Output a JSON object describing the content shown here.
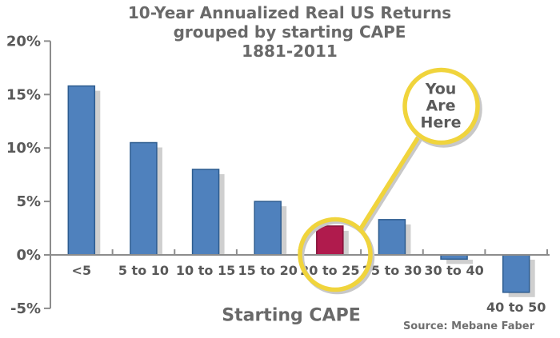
{
  "title": {
    "lines": [
      "10-Year Annualized Real US Returns",
      "grouped by starting CAPE",
      "1881-2011"
    ]
  },
  "annotation": {
    "lines": [
      "You",
      "Are",
      "Here"
    ],
    "text": "You Are Here",
    "target_category": "20 to 25"
  },
  "chart_data": {
    "type": "bar",
    "title": "10-Year Annualized Real US Returns grouped by starting CAPE 1881-2011",
    "categories": [
      "<5",
      "5 to 10",
      "10 to 15",
      "15 to 20",
      "20 to 25",
      "25 to 30",
      "30 to 40",
      "40 to 50"
    ],
    "values": [
      15.8,
      10.5,
      8.0,
      5.0,
      2.7,
      3.3,
      -0.4,
      -3.5
    ],
    "unit": "%",
    "xlabel": "Starting CAPE",
    "ylabel": "",
    "ylim": [
      -5,
      20
    ],
    "ytick_labels": [
      "20%",
      "15%",
      "10%",
      "5%",
      "0%",
      "-5%"
    ],
    "grid": false,
    "legend": "none",
    "highlight_index": 4,
    "source": "Source: Mebane Faber",
    "colors": {
      "bar": "#4f81bd",
      "bar_border": "#2d5c8f",
      "highlight": "#b01b4d",
      "highlight_border": "#821238",
      "shadow": "#cfcfcf",
      "axis": "#8c8c8c",
      "callout": "#f0d43c",
      "callout_shadow": "#c8c8c8",
      "label_text": "#595959",
      "title_text": "#696969"
    }
  }
}
